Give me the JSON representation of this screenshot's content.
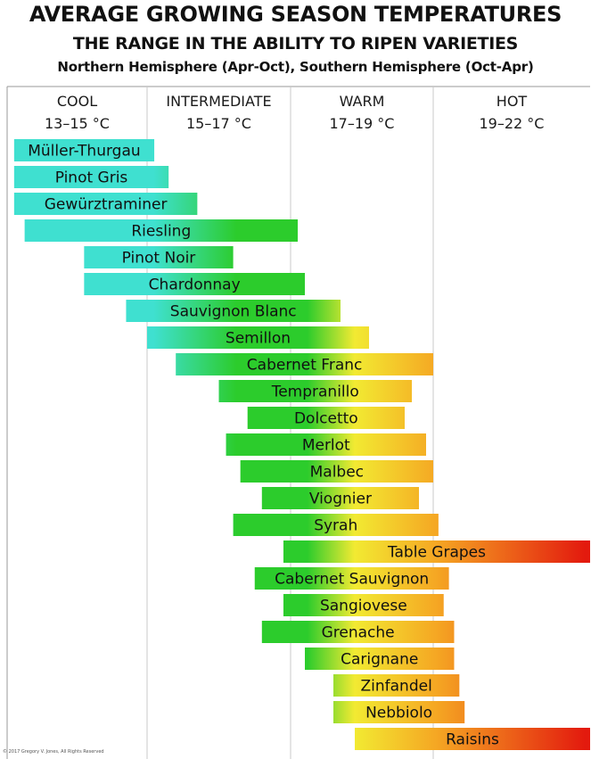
{
  "header": {
    "title": "AVERAGE GROWING SEASON TEMPERATURES",
    "subtitle": "THE RANGE IN THE ABILITY TO RIPEN VARIETIES",
    "hemisphere_note": "Northern Hemisphere (Apr-Oct), Southern Hemisphere (Oct-Apr)"
  },
  "copyright": "© 2017 Gregory V. Jones, All Rights Reserved",
  "chart_data": {
    "type": "bar",
    "orientation": "horizontal",
    "unit": "°C",
    "x_range": [
      13,
      22
    ],
    "grid": true,
    "categories": [
      {
        "name": "COOL",
        "range": "13–15 °C",
        "from": 13,
        "to": 15
      },
      {
        "name": "INTERMEDIATE",
        "range": "15–17 °C",
        "from": 15,
        "to": 17
      },
      {
        "name": "WARM",
        "range": "17–19 °C",
        "from": 17,
        "to": 19
      },
      {
        "name": "HOT",
        "range": "19–22 °C",
        "from": 19,
        "to": 22
      }
    ],
    "gradient_colors": {
      "cool": "#3fe0d0",
      "intermediate": "#2ccc2c",
      "warm": "#f2ea32",
      "warm_hot": "#f5a623",
      "hot": "#e31a0e"
    },
    "varieties": [
      {
        "name": "Müller-Thurgau",
        "min": 13.1,
        "max": 15.1
      },
      {
        "name": "Pinot Gris",
        "min": 13.1,
        "max": 15.3
      },
      {
        "name": "Gewürztraminer",
        "min": 13.1,
        "max": 15.7
      },
      {
        "name": "Riesling",
        "min": 13.25,
        "max": 17.1
      },
      {
        "name": "Pinot Noir",
        "min": 14.1,
        "max": 16.2
      },
      {
        "name": "Chardonnay",
        "min": 14.1,
        "max": 17.2
      },
      {
        "name": "Sauvignon Blanc",
        "min": 14.7,
        "max": 17.7
      },
      {
        "name": "Semillon",
        "min": 15.0,
        "max": 18.1
      },
      {
        "name": "Cabernet Franc",
        "min": 15.4,
        "max": 19.0
      },
      {
        "name": "Tempranillo",
        "min": 16.0,
        "max": 18.7
      },
      {
        "name": "Dolcetto",
        "min": 16.4,
        "max": 18.6
      },
      {
        "name": "Merlot",
        "min": 16.1,
        "max": 18.9
      },
      {
        "name": "Malbec",
        "min": 16.3,
        "max": 19.0
      },
      {
        "name": "Viognier",
        "min": 16.6,
        "max": 18.8
      },
      {
        "name": "Syrah",
        "min": 16.2,
        "max": 19.1
      },
      {
        "name": "Table Grapes",
        "min": 16.9,
        "max": 22.0
      },
      {
        "name": "Cabernet Sauvignon",
        "min": 16.5,
        "max": 19.3
      },
      {
        "name": "Sangiovese",
        "min": 16.9,
        "max": 19.2
      },
      {
        "name": "Grenache",
        "min": 16.6,
        "max": 19.4
      },
      {
        "name": "Carignane",
        "min": 17.2,
        "max": 19.4
      },
      {
        "name": "Zinfandel",
        "min": 17.6,
        "max": 19.5
      },
      {
        "name": "Nebbiolo",
        "min": 17.6,
        "max": 19.6
      },
      {
        "name": "Raisins",
        "min": 17.9,
        "max": 22.0
      }
    ]
  }
}
